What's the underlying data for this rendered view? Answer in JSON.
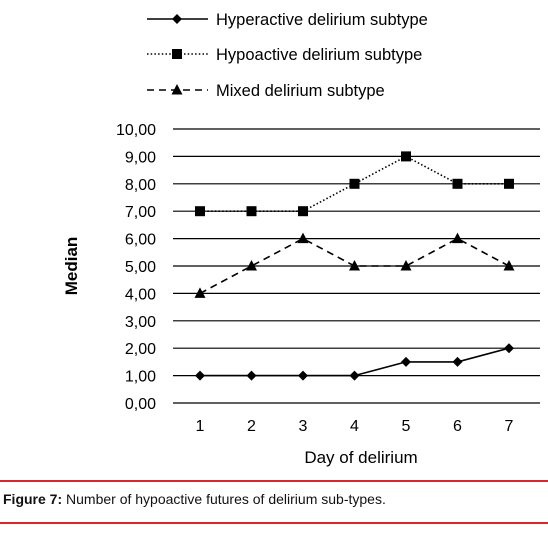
{
  "chart_data": {
    "type": "line",
    "title": "",
    "xlabel": "Day of delirium",
    "ylabel": "Median",
    "categories": [
      "1",
      "2",
      "3",
      "4",
      "5",
      "6",
      "7"
    ],
    "y_ticks": [
      "0,00",
      "1,00",
      "2,00",
      "3,00",
      "4,00",
      "5,00",
      "6,00",
      "7,00",
      "8,00",
      "9,00",
      "10,00"
    ],
    "ylim": [
      0,
      10
    ],
    "grid": "horizontal",
    "legend_position": "top",
    "series": [
      {
        "name": "Hyperactive delirium subtype",
        "line": "solid",
        "marker": "diamond",
        "color": "#000000",
        "values": [
          1,
          1,
          1,
          1,
          1.5,
          1.5,
          2
        ]
      },
      {
        "name": "Hypoactive delirium subtype",
        "line": "dotted",
        "marker": "square",
        "color": "#000000",
        "values": [
          7,
          7,
          7,
          8,
          9,
          8,
          8
        ]
      },
      {
        "name": "Mixed delirium subtype",
        "line": "dashed",
        "marker": "triangle",
        "color": "#000000",
        "values": [
          4,
          5,
          6,
          5,
          5,
          6,
          5
        ]
      }
    ]
  },
  "caption": {
    "label": "Figure 7:",
    "text": "Number of hypoactive futures of delirium sub-types.",
    "rule_color": "#d9272e"
  }
}
